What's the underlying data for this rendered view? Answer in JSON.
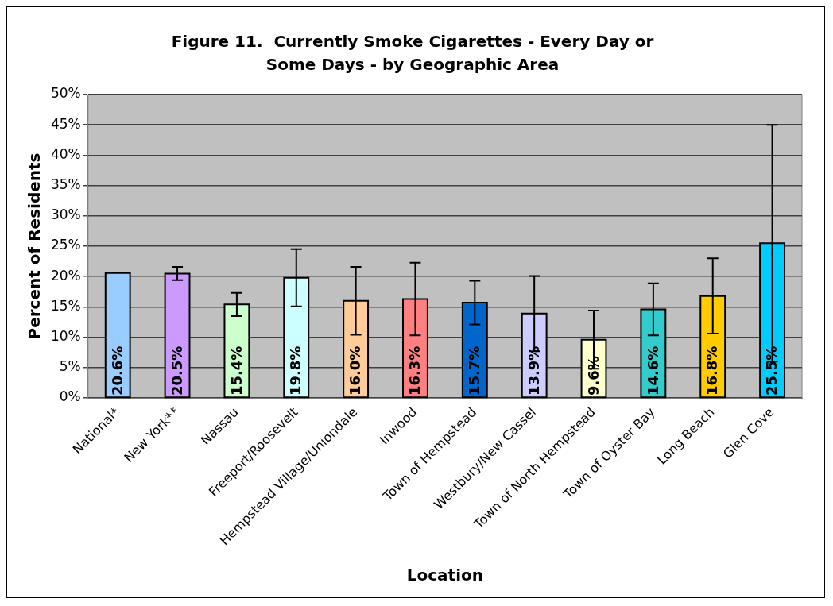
{
  "chart_data": {
    "type": "bar",
    "title": "Figure 11.  Currently Smoke Cigarettes - Every Day or Some Days - by Geographic Area",
    "xlabel": "Location",
    "ylabel": "Percent of Residents",
    "categories": [
      "National*",
      "New York**",
      "Nassau",
      "Freeport/Roosevelt",
      "Hempstead Village/Uniondale",
      "Inwood",
      "Town of Hempstead",
      "Westbury/New Cassel",
      "Town of North Hempstead",
      "Town of Oyster Bay",
      "Long Beach",
      "Glen Cove"
    ],
    "values": [
      20.6,
      20.5,
      15.4,
      19.8,
      16.0,
      16.3,
      15.7,
      13.9,
      9.6,
      14.6,
      16.8,
      25.5
    ],
    "errors": [
      null,
      1.1,
      1.9,
      4.7,
      5.6,
      6.0,
      3.6,
      6.2,
      4.8,
      4.3,
      6.2,
      19.5
    ],
    "value_labels": [
      "20.6%",
      "20.5%",
      "15.4%",
      "19.8%",
      "16.0%",
      "16.3%",
      "15.7%",
      "13.9%",
      "9.6%",
      "14.6%",
      "16.8%",
      "25.5%"
    ],
    "colors": [
      "#99ccff",
      "#cc99ff",
      "#ccffcc",
      "#ccffff",
      "#ffcc99",
      "#ff8080",
      "#0066cc",
      "#ccccff",
      "#ffffcc",
      "#33cccc",
      "#ffcc00",
      "#00ccff"
    ],
    "ylim": [
      0,
      50
    ],
    "yticks": [
      {
        "value": 0,
        "label": "0%"
      },
      {
        "value": 5,
        "label": "5%"
      },
      {
        "value": 10,
        "label": "10%"
      },
      {
        "value": 15,
        "label": "15%"
      },
      {
        "value": 20,
        "label": "20%"
      },
      {
        "value": 25,
        "label": "25%"
      },
      {
        "value": 30,
        "label": "30%"
      },
      {
        "value": 35,
        "label": "35%"
      },
      {
        "value": 40,
        "label": "40%"
      },
      {
        "value": 45,
        "label": "45%"
      },
      {
        "value": 50,
        "label": "50%"
      }
    ],
    "grid": "y",
    "legend": false
  }
}
